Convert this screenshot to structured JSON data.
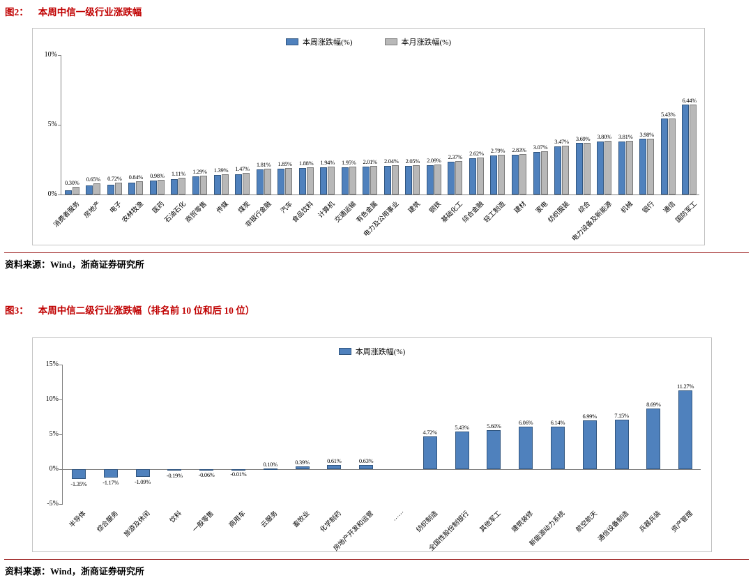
{
  "colors": {
    "accent": "#c00000",
    "week_fill": "#4f81bd",
    "week_stroke": "#30557f",
    "month_fill": "#b8b8b8",
    "month_stroke": "#7a7a7a",
    "axis": "#7f7f7f",
    "chart_border": "#c3c3c3"
  },
  "figure2": {
    "label": "图2：",
    "title": "本周中信一级行业涨跌幅",
    "source": "资料来源：Wind，浙商证券研究所"
  },
  "figure3": {
    "label": "图3：",
    "title": "本周中信二级行业涨跌幅（排名前 10 位和后 10 位）",
    "source": "资料来源：Wind，浙商证券研究所"
  },
  "chart_data": [
    {
      "type": "bar",
      "title": "本周中信一级行业涨跌幅",
      "ylim": [
        0,
        10
      ],
      "yticks": [
        "0%",
        "5%",
        "10%"
      ],
      "grid": false,
      "legend_position": "top",
      "categories": [
        "消费者服务",
        "房地产",
        "电子",
        "农林牧渔",
        "医药",
        "石油石化",
        "商贸零售",
        "传媒",
        "煤炭",
        "非银行金融",
        "汽车",
        "食品饮料",
        "计算机",
        "交通运输",
        "有色金属",
        "电力及公用事业",
        "建筑",
        "钢铁",
        "基础化工",
        "综合金融",
        "轻工制造",
        "建材",
        "家电",
        "纺织服装",
        "综合",
        "电力设备及新能源",
        "机械",
        "银行",
        "通信",
        "国防军工"
      ],
      "series": [
        {
          "name": "本周涨跌幅(%)",
          "values": [
            0.3,
            0.65,
            0.72,
            0.84,
            0.98,
            1.11,
            1.29,
            1.39,
            1.47,
            1.81,
            1.85,
            1.88,
            1.94,
            1.95,
            2.01,
            2.04,
            2.05,
            2.09,
            2.37,
            2.62,
            2.79,
            2.83,
            3.07,
            3.47,
            3.69,
            3.8,
            3.81,
            3.98,
            5.43,
            6.44
          ]
        },
        {
          "name": "本月涨跌幅(%)",
          "values": [
            0.55,
            0.8,
            0.85,
            0.95,
            1.05,
            1.2,
            1.35,
            1.45,
            1.55,
            1.85,
            1.9,
            1.95,
            2.0,
            2.0,
            2.05,
            2.1,
            2.1,
            2.15,
            2.4,
            2.65,
            2.85,
            2.9,
            3.1,
            3.5,
            3.7,
            3.85,
            3.85,
            4.0,
            5.45,
            6.45
          ]
        }
      ],
      "data_labels_series": 0
    },
    {
      "type": "bar",
      "title": "本周中信二级行业涨跌幅（排名前 10 位和后 10 位）",
      "ylim": [
        -5,
        15
      ],
      "yticks": [
        "-5%",
        "0%",
        "5%",
        "10%",
        "15%"
      ],
      "grid": false,
      "legend_position": "top",
      "categories": [
        "半导体",
        "综合服务",
        "旅游及休闲",
        "饮料",
        "一般零售",
        "商用车",
        "云服务",
        "畜牧业",
        "化学制药",
        "房地产开发和运营",
        "……",
        "纺织制造",
        "全国性股份制银行",
        "其他军工",
        "建筑装修",
        "新能源动力系统",
        "航空航天",
        "通信设备制造",
        "兵器兵装",
        "资产管理"
      ],
      "series": [
        {
          "name": "本周涨跌幅(%)",
          "values": [
            -1.35,
            -1.17,
            -1.09,
            -0.19,
            -0.06,
            -0.01,
            0.1,
            0.39,
            0.61,
            0.63,
            null,
            4.72,
            5.43,
            5.6,
            6.06,
            6.14,
            6.99,
            7.15,
            8.69,
            11.27
          ]
        }
      ],
      "data_labels_series": 0
    }
  ]
}
